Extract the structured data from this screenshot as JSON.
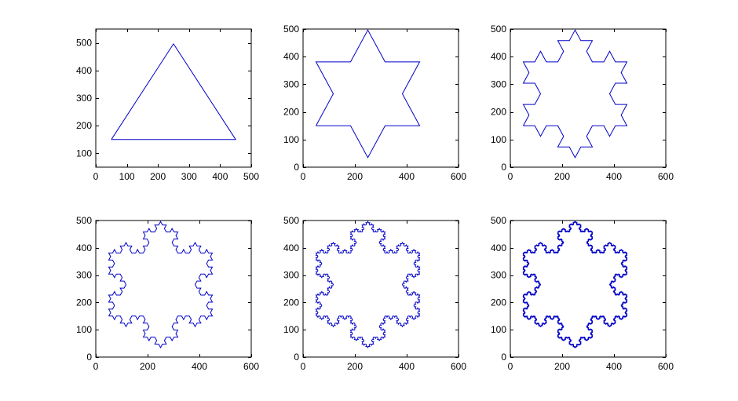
{
  "figure": {
    "background": "#ffffff",
    "line_color": "#0000c8"
  },
  "chart_data": [
    {
      "type": "line",
      "title": "",
      "xlabel": "",
      "ylabel": "",
      "grid": false,
      "xlim": [
        0,
        500
      ],
      "ylim": [
        50,
        550
      ],
      "xticks": [
        0,
        100,
        200,
        300,
        400,
        500
      ],
      "yticks": [
        100,
        200,
        300,
        400,
        500
      ],
      "series": [
        {
          "koch_iterations": 0,
          "start": [
            50,
            150
          ],
          "end": [
            450,
            150
          ],
          "color": "#0000c8"
        }
      ]
    },
    {
      "type": "line",
      "title": "",
      "xlabel": "",
      "ylabel": "",
      "grid": false,
      "xlim": [
        0,
        600
      ],
      "ylim": [
        0,
        500
      ],
      "xticks": [
        0,
        200,
        400,
        600
      ],
      "yticks": [
        0,
        100,
        200,
        300,
        400,
        500
      ],
      "series": [
        {
          "koch_iterations": 1,
          "start": [
            50,
            150
          ],
          "end": [
            450,
            150
          ],
          "color": "#0000c8"
        }
      ]
    },
    {
      "type": "line",
      "title": "",
      "xlabel": "",
      "ylabel": "",
      "grid": false,
      "xlim": [
        0,
        600
      ],
      "ylim": [
        0,
        500
      ],
      "xticks": [
        0,
        200,
        400,
        600
      ],
      "yticks": [
        0,
        100,
        200,
        300,
        400,
        500
      ],
      "series": [
        {
          "koch_iterations": 2,
          "start": [
            50,
            150
          ],
          "end": [
            450,
            150
          ],
          "color": "#0000c8"
        }
      ]
    },
    {
      "type": "line",
      "title": "",
      "xlabel": "",
      "ylabel": "",
      "grid": false,
      "xlim": [
        0,
        600
      ],
      "ylim": [
        0,
        500
      ],
      "xticks": [
        0,
        200,
        400,
        600
      ],
      "yticks": [
        0,
        100,
        200,
        300,
        400,
        500
      ],
      "series": [
        {
          "koch_iterations": 3,
          "start": [
            50,
            150
          ],
          "end": [
            450,
            150
          ],
          "color": "#0000c8"
        }
      ]
    },
    {
      "type": "line",
      "title": "",
      "xlabel": "",
      "ylabel": "",
      "grid": false,
      "xlim": [
        0,
        600
      ],
      "ylim": [
        0,
        500
      ],
      "xticks": [
        0,
        200,
        400,
        600
      ],
      "yticks": [
        0,
        100,
        200,
        300,
        400,
        500
      ],
      "series": [
        {
          "koch_iterations": 4,
          "start": [
            50,
            150
          ],
          "end": [
            450,
            150
          ],
          "color": "#0000c8"
        }
      ]
    },
    {
      "type": "line",
      "title": "",
      "xlabel": "",
      "ylabel": "",
      "grid": false,
      "xlim": [
        0,
        600
      ],
      "ylim": [
        0,
        500
      ],
      "xticks": [
        0,
        200,
        400,
        600
      ],
      "yticks": [
        0,
        100,
        200,
        300,
        400,
        500
      ],
      "series": [
        {
          "koch_iterations": 5,
          "start": [
            50,
            150
          ],
          "end": [
            450,
            150
          ],
          "color": "#0000c8"
        }
      ]
    }
  ]
}
